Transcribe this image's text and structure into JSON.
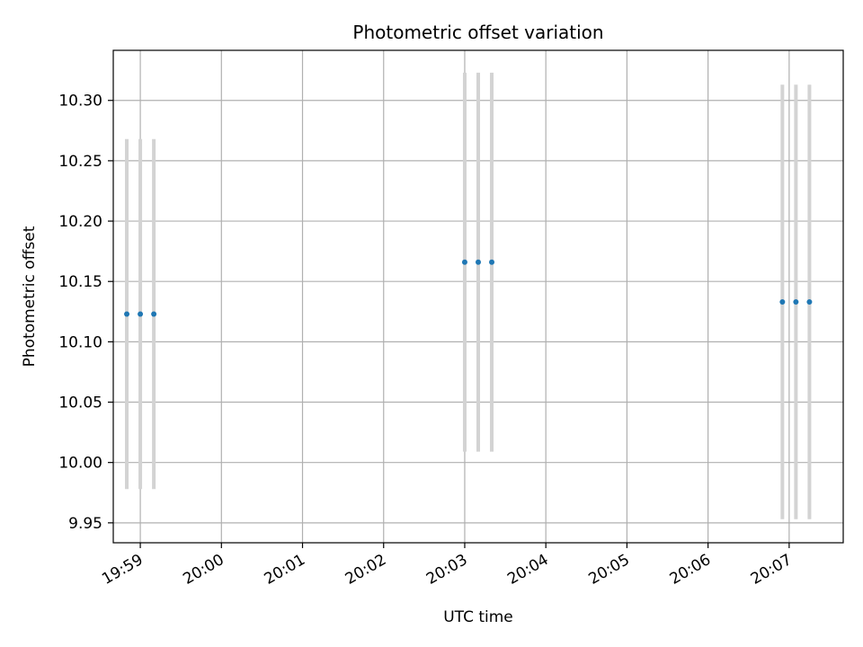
{
  "chart_data": {
    "type": "scatter",
    "title": "Photometric offset variation",
    "xlabel": "UTC time",
    "ylabel": "Photometric offset",
    "xlim": [
      "19:58:40",
      "20:07:40"
    ],
    "ylim": [
      9.9335,
      10.3415
    ],
    "grid": true,
    "colors": {
      "points": "#1f77b4",
      "errorbars": "#d3d3d3",
      "grid": "#b0b0b0"
    },
    "x_ticks": [
      "19:59",
      "20:00",
      "20:01",
      "20:02",
      "20:03",
      "20:04",
      "20:05",
      "20:06",
      "20:07"
    ],
    "y_ticks": [
      "9.95",
      "10.00",
      "10.05",
      "10.10",
      "10.15",
      "10.20",
      "10.25",
      "10.30"
    ],
    "points": [
      {
        "x": "19:58:50",
        "y": 10.123,
        "err": 0.145
      },
      {
        "x": "19:59:00",
        "y": 10.123,
        "err": 0.145
      },
      {
        "x": "19:59:10",
        "y": 10.123,
        "err": 0.145
      },
      {
        "x": "20:03:00",
        "y": 10.166,
        "err": 0.157
      },
      {
        "x": "20:03:10",
        "y": 10.166,
        "err": 0.157
      },
      {
        "x": "20:03:20",
        "y": 10.166,
        "err": 0.157
      },
      {
        "x": "20:06:55",
        "y": 10.133,
        "err": 0.18
      },
      {
        "x": "20:07:05",
        "y": 10.133,
        "err": 0.18
      },
      {
        "x": "20:07:15",
        "y": 10.133,
        "err": 0.18
      }
    ]
  }
}
